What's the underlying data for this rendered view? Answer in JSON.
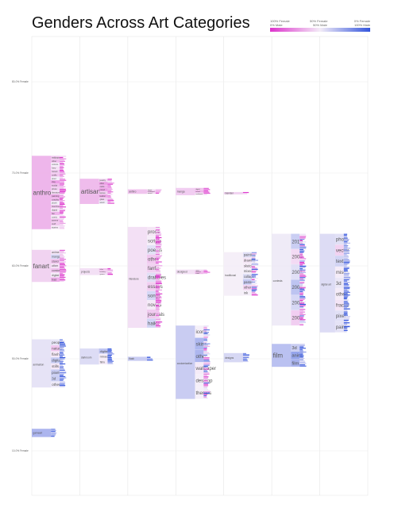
{
  "chart_data": {
    "type": "other",
    "title": "Genders Across Art Categories",
    "legend": {
      "placement": "top-right",
      "labels": [
        "100% Female",
        "0% Male",
        "50% Female",
        "50% Male",
        "0% Female",
        "100% Male"
      ],
      "colors": {
        "female": "#dd33cc",
        "mid": "#f3ecf7",
        "male": "#3355dd"
      }
    },
    "rows": [
      "80-0% Female",
      "70-0% Female",
      "60-0% Female",
      "50-0% Female",
      "10-0% Female"
    ],
    "column_count": 7,
    "blocks": [
      {
        "col": 0,
        "label": "anthro",
        "sub": [
          "wallpaper",
          "other",
          "comics",
          "furry",
          "fursuit",
          "crafts",
          "pixel",
          "clay",
          "sculpt",
          "photo",
          "literature",
          "painting",
          "cosplay",
          "plush",
          "sketches",
          "digital",
          "fan",
          "comic",
          "poems",
          "stuff",
          "stories"
        ],
        "female_share": 0.7,
        "rel_top": 0.26,
        "rel_h": 0.16,
        "strip": "f"
      },
      {
        "col": 0,
        "label": "fanart",
        "sub": [
          "anime",
          "manga",
          "stand",
          "other",
          "comics",
          "digital",
          "trad"
        ],
        "female_share": 0.6,
        "rel_top": 0.465,
        "rel_h": 0.07,
        "strip": "f"
      },
      {
        "col": 0,
        "label": "animation",
        "sub": [
          "people",
          "nature",
          "flash",
          "digital",
          "stills",
          "pixel",
          "3d",
          "other"
        ],
        "female_share": 0.45,
        "rel_top": 0.66,
        "rel_h": 0.105,
        "strip": "m"
      },
      {
        "col": 0,
        "label": "gameart",
        "sub": [],
        "female_share": 0.25,
        "rel_top": 0.855,
        "rel_h": 0.018,
        "strip": "m"
      },
      {
        "col": 1,
        "label": "artisan",
        "sub": [
          "jewelry",
          "other",
          "cards",
          "mixed",
          "stones",
          "leather",
          "glass",
          "wood"
        ],
        "female_share": 0.68,
        "rel_top": 0.31,
        "rel_h": 0.055,
        "strip": "f"
      },
      {
        "col": 1,
        "label": "projects",
        "sub": [
          "other",
          "birthday",
          "games"
        ],
        "female_share": 0.55,
        "rel_top": 0.505,
        "rel_h": 0.015,
        "strip": "f"
      },
      {
        "col": 1,
        "label": "darkroom",
        "sub": [
          "digital",
          "mixed",
          "film"
        ],
        "female_share": 0.42,
        "rel_top": 0.68,
        "rel_h": 0.035,
        "strip": "m"
      },
      {
        "col": 2,
        "label": "anthro",
        "sub": [
          "digital",
          "traditional",
          "mixed"
        ],
        "female_share": 0.65,
        "rel_top": 0.333,
        "rel_h": 0.01,
        "strip": "f"
      },
      {
        "col": 2,
        "label": "literature",
        "sub": [
          "prose",
          "scripts",
          "poems",
          "other",
          "fanfic",
          "drabbles",
          "essays",
          "songs",
          "novels",
          "journals",
          "haiku"
        ],
        "female_share": 0.55,
        "rel_top": 0.415,
        "rel_h": 0.22,
        "strip": "f"
      },
      {
        "col": 2,
        "label": "flash",
        "sub": [],
        "female_share": 0.35,
        "rel_top": 0.698,
        "rel_h": 0.009,
        "strip": "m"
      },
      {
        "col": 3,
        "label": "manga",
        "sub": [
          "digital",
          "mixed",
          "traditional"
        ],
        "female_share": 0.62,
        "rel_top": 0.33,
        "rel_h": 0.016,
        "strip": "f"
      },
      {
        "col": 3,
        "label": "designed",
        "sub": [
          "other",
          "stamps",
          "icons"
        ],
        "female_share": 0.55,
        "rel_top": 0.508,
        "rel_h": 0.01,
        "strip": "f"
      },
      {
        "col": 3,
        "label": "customization",
        "sub": [
          "icons",
          "skins",
          "other",
          "wallpaper",
          "desktop",
          "themes"
        ],
        "female_share": 0.35,
        "rel_top": 0.63,
        "rel_h": 0.16,
        "strip": "mix"
      },
      {
        "col": 4,
        "label": "Gender",
        "sub": [],
        "female_share": 0.6,
        "rel_top": 0.339,
        "rel_h": 0.003,
        "strip": "f"
      },
      {
        "col": 4,
        "label": "traditional",
        "sub": [
          "painting",
          "drawing",
          "sketch",
          "mixed",
          "collage",
          "pastel",
          "other",
          "ink"
        ],
        "female_share": 0.5,
        "rel_top": 0.47,
        "rel_h": 0.095,
        "strip": "mix"
      },
      {
        "col": 4,
        "label": "designs",
        "sub": [],
        "female_share": 0.4,
        "rel_top": 0.69,
        "rel_h": 0.02,
        "strip": "m"
      },
      {
        "col": 5,
        "label": "contests",
        "sub": [
          "2010",
          "2009",
          "2008",
          "2006",
          "2007",
          "2005"
        ],
        "female_share": 0.48,
        "rel_top": 0.43,
        "rel_h": 0.2,
        "strip": "mix"
      },
      {
        "col": 5,
        "label": "film",
        "sub": [
          "3d",
          "anim",
          "film"
        ],
        "female_share": 0.3,
        "rel_top": 0.67,
        "rel_h": 0.05,
        "strip": "m"
      },
      {
        "col": 6,
        "label": "digital art",
        "sub": [
          "photo",
          "vector",
          "text",
          "misc",
          "3d",
          "other",
          "fractal",
          "pixel",
          "paint"
        ],
        "female_share": 0.42,
        "rel_top": 0.43,
        "rel_h": 0.215,
        "strip": "m"
      }
    ]
  }
}
